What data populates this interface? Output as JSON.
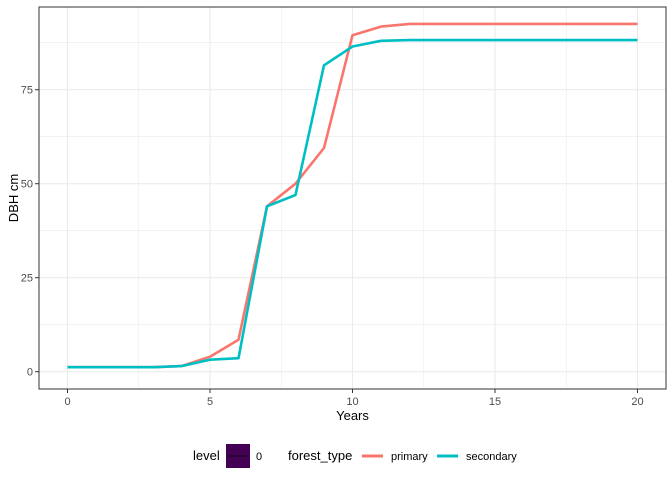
{
  "chart_data": {
    "type": "line",
    "title": "",
    "xlabel": "Years",
    "ylabel": "DBH cm",
    "xlim": [
      -1,
      21
    ],
    "ylim": [
      -4.6,
      97
    ],
    "xticks": [
      0,
      5,
      10,
      15,
      20
    ],
    "yticks": [
      0,
      25,
      50,
      75
    ],
    "grid": true,
    "x": [
      0,
      1,
      2,
      3,
      4,
      5,
      6,
      7,
      8,
      9,
      10,
      11,
      12,
      13,
      14,
      15,
      16,
      17,
      18,
      19,
      20
    ],
    "series": [
      {
        "name": "primary",
        "color": "#F8766D",
        "values": [
          1.2,
          1.2,
          1.2,
          1.2,
          1.5,
          4.0,
          8.5,
          44.0,
          50.0,
          59.5,
          89.5,
          91.8,
          92.5,
          92.5,
          92.5,
          92.5,
          92.5,
          92.5,
          92.5,
          92.5,
          92.5
        ]
      },
      {
        "name": "secondary",
        "color": "#00BFC4",
        "values": [
          1.2,
          1.2,
          1.2,
          1.2,
          1.5,
          3.2,
          3.6,
          44.0,
          47.0,
          81.5,
          86.5,
          88.0,
          88.2,
          88.2,
          88.2,
          88.2,
          88.2,
          88.2,
          88.2,
          88.2,
          88.2
        ]
      }
    ],
    "legend": {
      "position": "bottom",
      "level_title": "level",
      "level_value": "0",
      "level_color": "#440154",
      "forest_title": "forest_type"
    }
  }
}
